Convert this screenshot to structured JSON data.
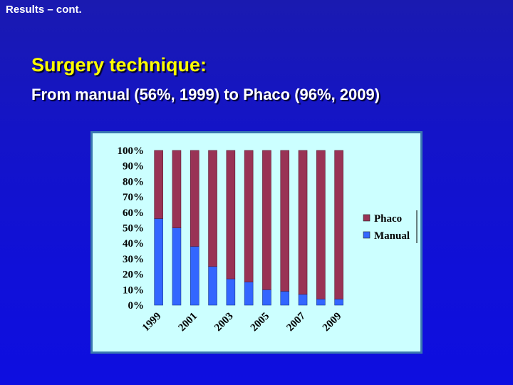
{
  "header": {
    "top_label": "Results – cont.",
    "title": "Surgery technique:",
    "subtitle": "From manual (56%, 1999) to Phaco (96%, 2009)"
  },
  "colors": {
    "background": "#1414c8",
    "title": "#ffff00",
    "subtitle": "#ffffff",
    "chart_bg": "#ccffff",
    "phaco": "#993355",
    "manual": "#3366ff"
  },
  "chart_data": {
    "type": "bar",
    "stacked": true,
    "percent_stacked": true,
    "categories": [
      "1999",
      "2000",
      "2001",
      "2002",
      "2003",
      "2004",
      "2005",
      "2006",
      "2007",
      "2008",
      "2009"
    ],
    "x_tick_labels": [
      "1999",
      "2001",
      "2003",
      "2005",
      "2007",
      "2009"
    ],
    "y_tick_labels": [
      "0%",
      "10%",
      "20%",
      "30%",
      "40%",
      "50%",
      "60%",
      "70%",
      "80%",
      "90%",
      "100%"
    ],
    "ylim": [
      0,
      100
    ],
    "grid": false,
    "legend_position": "right",
    "legend": [
      "Phaco",
      "Manual"
    ],
    "series": [
      {
        "name": "Manual",
        "color": "#3366ff",
        "values": [
          56,
          50,
          38,
          25,
          17,
          15,
          10,
          9,
          7,
          4,
          4
        ]
      },
      {
        "name": "Phaco",
        "color": "#993355",
        "values": [
          44,
          50,
          62,
          75,
          83,
          85,
          90,
          91,
          93,
          96,
          96
        ]
      }
    ]
  }
}
